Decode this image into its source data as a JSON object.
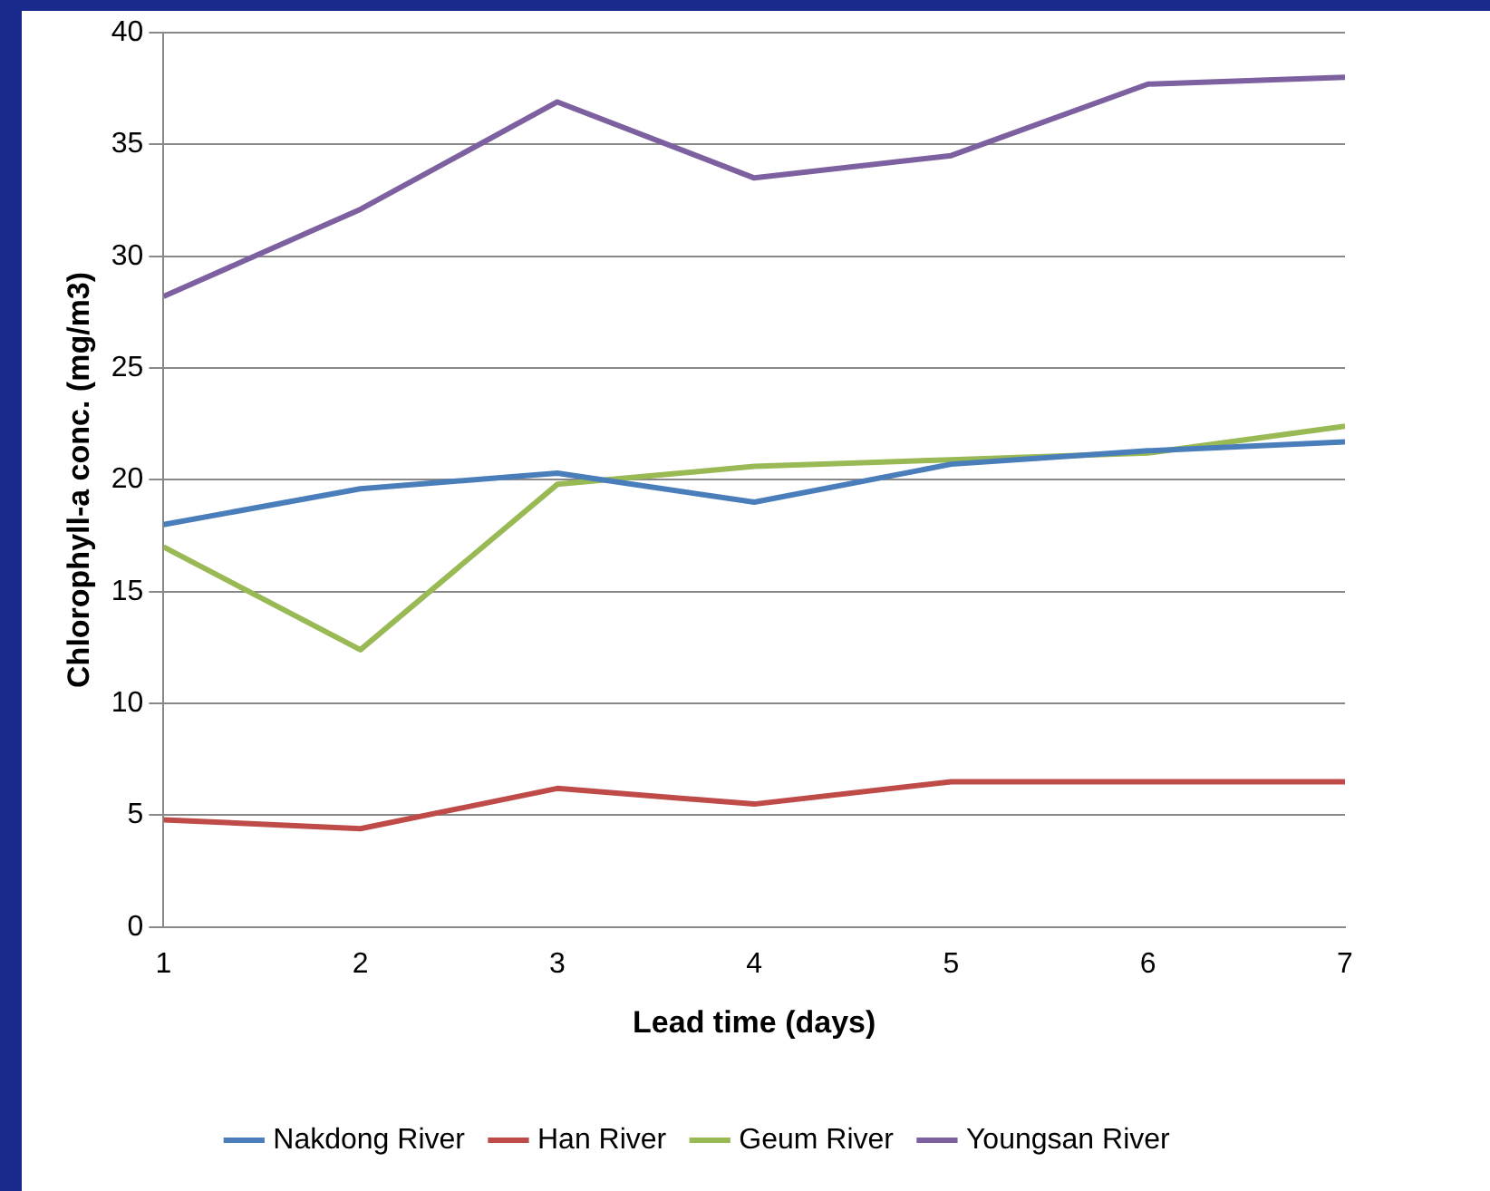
{
  "chart_data": {
    "type": "line",
    "xlabel": "Lead time (days)",
    "ylabel": "Chlorophyll-a conc. (mg/m3)",
    "x": [
      1,
      2,
      3,
      4,
      5,
      6,
      7
    ],
    "series": [
      {
        "name": "Nakdong River",
        "color": "#4a7ebb",
        "values": [
          18.0,
          19.6,
          20.3,
          19.0,
          20.7,
          21.3,
          21.7
        ]
      },
      {
        "name": "Han River",
        "color": "#be4b48",
        "values": [
          4.8,
          4.4,
          6.2,
          5.5,
          6.5,
          6.5,
          6.5
        ]
      },
      {
        "name": "Geum River",
        "color": "#98b954",
        "values": [
          17.0,
          12.4,
          19.8,
          20.6,
          20.9,
          21.2,
          22.4
        ]
      },
      {
        "name": "Youngsan River",
        "color": "#7d60a0",
        "values": [
          28.2,
          32.1,
          36.9,
          33.5,
          34.5,
          37.7,
          38.0
        ]
      }
    ],
    "xlim": [
      1,
      7
    ],
    "xticks": [
      1,
      2,
      3,
      4,
      5,
      6,
      7
    ],
    "ylim": [
      0,
      40
    ],
    "yticks": [
      0,
      5,
      10,
      15,
      20,
      25,
      30,
      35,
      40
    ],
    "grid": "y",
    "legend": "bottom",
    "marker": "none",
    "line_style": "solid"
  }
}
